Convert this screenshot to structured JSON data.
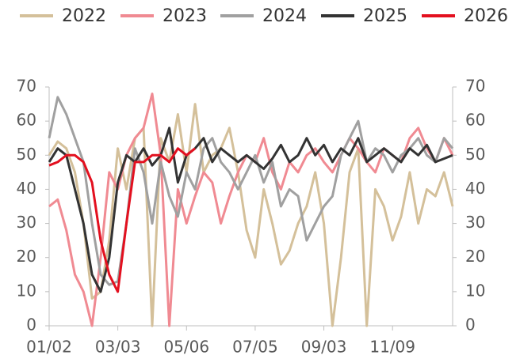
{
  "chart_data": {
    "type": "line",
    "categories": [
      "01/02",
      null,
      null,
      null,
      null,
      null,
      null,
      null,
      "03/03",
      null,
      null,
      null,
      null,
      null,
      null,
      null,
      "05/06",
      null,
      null,
      null,
      null,
      null,
      null,
      null,
      "07/05",
      null,
      null,
      null,
      null,
      null,
      null,
      null,
      "09/03",
      null,
      null,
      null,
      null,
      null,
      null,
      null,
      "11/09",
      null,
      null,
      null,
      null,
      null,
      null,
      null
    ],
    "series": [
      {
        "name": "2022",
        "color": "#d4c09a",
        "values": [
          50,
          54,
          52,
          45,
          30,
          8,
          10,
          25,
          52,
          40,
          55,
          58,
          0,
          55,
          48,
          62,
          45,
          65,
          45,
          50,
          52,
          58,
          45,
          28,
          20,
          40,
          30,
          18,
          22,
          30,
          35,
          45,
          30,
          0,
          20,
          45,
          52,
          0,
          40,
          35,
          25,
          32,
          45,
          30,
          40,
          38,
          45,
          35
        ]
      },
      {
        "name": "2023",
        "color": "#f08a92",
        "values": [
          35,
          37,
          28,
          15,
          10,
          0,
          20,
          45,
          40,
          50,
          55,
          58,
          68,
          50,
          0,
          40,
          30,
          38,
          45,
          42,
          30,
          38,
          45,
          50,
          48,
          55,
          45,
          40,
          48,
          45,
          50,
          52,
          48,
          45,
          50,
          55,
          52,
          48,
          45,
          52,
          50,
          48,
          55,
          58,
          52,
          48,
          55,
          50
        ]
      },
      {
        "name": "2024",
        "color": "#a0a0a0",
        "values": [
          55,
          67,
          62,
          55,
          48,
          30,
          15,
          12,
          13,
          30,
          52,
          45,
          30,
          48,
          38,
          32,
          45,
          40,
          52,
          55,
          48,
          45,
          40,
          45,
          50,
          42,
          48,
          35,
          40,
          38,
          25,
          30,
          35,
          38,
          50,
          55,
          60,
          48,
          52,
          50,
          45,
          50,
          52,
          55,
          50,
          48,
          55,
          52
        ]
      },
      {
        "name": "2025",
        "color": "#333333",
        "values": [
          48,
          52,
          50,
          40,
          30,
          15,
          10,
          20,
          42,
          50,
          48,
          52,
          47,
          50,
          58,
          42,
          50,
          52,
          55,
          48,
          52,
          50,
          48,
          50,
          48,
          46,
          49,
          53,
          48,
          50,
          55,
          50,
          53,
          48,
          52,
          50,
          55,
          48,
          50,
          52,
          50,
          48,
          52,
          50,
          53,
          48,
          49,
          50
        ]
      },
      {
        "name": "2026",
        "color": "#e3101f",
        "values": [
          47,
          48,
          50,
          50,
          48,
          42,
          25,
          15,
          10,
          30,
          48,
          48,
          50,
          50,
          48,
          52,
          50,
          52,
          null,
          null,
          null,
          null,
          null,
          null,
          null,
          null,
          null,
          null,
          null,
          null,
          null,
          null,
          null,
          null,
          null,
          null,
          null,
          null,
          null,
          null,
          null,
          null,
          null,
          null,
          null,
          null,
          null,
          null
        ]
      }
    ],
    "ylim": [
      0,
      70
    ],
    "yticks": [
      0,
      10,
      20,
      30,
      40,
      50,
      60,
      70
    ],
    "y2lim": [
      0,
      70
    ],
    "y2ticks": [
      0,
      10,
      20,
      30,
      40,
      50,
      60,
      70
    ],
    "grid": false,
    "legend": "top"
  }
}
